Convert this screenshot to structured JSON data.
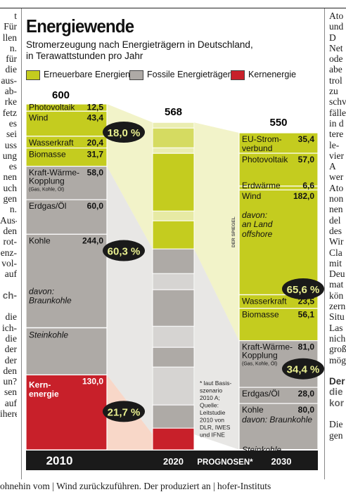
{
  "article": {
    "left_column": [
      "t",
      "Für",
      "llen",
      "n.",
      "für",
      "die",
      "aus-",
      "ab-",
      "rke",
      "fetz",
      "es",
      "sei",
      "uss",
      "ung",
      "es",
      "nen",
      "uch",
      "gen",
      "n.",
      "Aus-",
      "den",
      "rot-",
      "enz-",
      "vol-",
      "auf",
      "",
      "ch-",
      "",
      "die",
      "ich-",
      "die",
      "der",
      "der",
      "den",
      "un?",
      "sen",
      "auf",
      "ihere"
    ],
    "right_column": [
      "Ato",
      "und",
      "D",
      "Net",
      "ode",
      "abe",
      "trol",
      "zu",
      "schv",
      "fälle",
      "in d",
      "tere",
      "le-",
      "vier",
      "A",
      "wer",
      "Ato",
      "non",
      "nen",
      "del",
      "des",
      "Wir",
      "Cla",
      "mit",
      "Deu",
      "mat",
      "kön",
      "zern",
      "Situ",
      "Las",
      "nich",
      "groß",
      "mög",
      "",
      "Der",
      "die",
      "kor",
      "",
      "Die",
      "gen"
    ],
    "bottom_line": "ohnehin vom  |  Wind zurückzuführen. Der produziert an  |  hofer-Instituts"
  },
  "title": "Energiewende",
  "subtitle_lines": [
    "Stromerzeugung nach Energieträgern in Deutschland,",
    "in Terawattstunden pro Jahr"
  ],
  "legend": [
    {
      "label": "Erneuerbare Energien",
      "color": "#c4cc1f"
    },
    {
      "label": "Fossile Energieträger",
      "color": "#aeaaa6"
    },
    {
      "label": "Kernenergie",
      "color": "#c8202a"
    }
  ],
  "colors": {
    "renewable": "#c4cc1f",
    "fossil": "#aeaaa6",
    "nuclear": "#c8202a",
    "band_dark": "#1a1a1a",
    "renewable_light": "#e8ea9c",
    "fossil_light": "#d6d3d0",
    "nuclear_light": "#f2b79a"
  },
  "chart_data": {
    "type": "bar",
    "stacked": true,
    "unit": "TWh",
    "categories": [
      "2010",
      "2020",
      "2030"
    ],
    "band_label": "PROGNOSEN*",
    "totals": [
      600,
      568,
      550
    ],
    "bars": [
      {
        "year": "2010",
        "total": 600,
        "segments": [
          {
            "label": "Photovoltaik",
            "value": 12.5,
            "value_label": "12,5",
            "type": "renewable"
          },
          {
            "label": "Wind",
            "value": 43.4,
            "value_label": "43,4",
            "type": "renewable"
          },
          {
            "label": "Wasserkraft",
            "value": 20.4,
            "value_label": "20,4",
            "type": "renewable"
          },
          {
            "label": "Biomasse",
            "value": 31.7,
            "value_label": "31,7",
            "type": "renewable"
          },
          {
            "label": "Kraft-Wärme-Kopplung",
            "sublabel": "(Gas, Kohle, Öl)",
            "value": 58.0,
            "value_label": "58,0",
            "type": "fossil"
          },
          {
            "label": "Erdgas/Öl",
            "value": 60.0,
            "value_label": "60,0",
            "type": "fossil"
          },
          {
            "label": "Kohle",
            "value": 244.0,
            "value_label": "244,0",
            "type": "fossil",
            "note": "davon: Braunkohle",
            "note2": "Steinkohle"
          },
          {
            "label": "Kernenergie",
            "value": 130.0,
            "value_label": "130,0",
            "type": "nuclear"
          }
        ],
        "shares": [
          {
            "label": "18,0 %",
            "value": 18.0,
            "type": "renewable"
          },
          {
            "label": "60,3 %",
            "value": 60.3,
            "type": "fossil"
          },
          {
            "label": "21,7 %",
            "value": 21.7,
            "type": "nuclear"
          }
        ]
      },
      {
        "year": "2020",
        "total": 568,
        "segments": []
      },
      {
        "year": "2030",
        "total": 550,
        "segments": [
          {
            "label": "EU-Stromverbund",
            "value": 35.4,
            "value_label": "35,4",
            "type": "renewable"
          },
          {
            "label": "Photovoltaik",
            "value": 57.0,
            "value_label": "57,0",
            "type": "renewable"
          },
          {
            "label": "Erdwärme",
            "value": 6.6,
            "value_label": "6,6",
            "type": "renewable"
          },
          {
            "label": "Wind",
            "value": 182.0,
            "value_label": "182,0",
            "type": "renewable",
            "note": "davon: an Land",
            "note2": "offshore"
          },
          {
            "label": "Wasserkraft",
            "value": 23.5,
            "value_label": "23,5",
            "type": "renewable"
          },
          {
            "label": "Biomasse",
            "value": 56.1,
            "value_label": "56,1",
            "type": "renewable"
          },
          {
            "label": "Kraft-Wärme-Kopplung",
            "sublabel": "(Gas, Kohle, Öl)",
            "value": 81.0,
            "value_label": "81,0",
            "type": "fossil"
          },
          {
            "label": "Erdgas/Öl",
            "value": 28.0,
            "value_label": "28,0",
            "type": "fossil"
          },
          {
            "label": "Kohle",
            "value": 80.0,
            "value_label": "80,0",
            "type": "fossil",
            "note": "davon: Braunkohle",
            "note2": "Steinkohle"
          }
        ],
        "shares": [
          {
            "label": "65,6 %",
            "value": 65.6,
            "type": "renewable"
          },
          {
            "label": "34,4 %",
            "value": 34.4,
            "type": "fossil"
          }
        ]
      }
    ],
    "footnote": "* laut Basis- szenario 2010 A; Quelle: Leitstudie 2010 von DLR, IWES und IFNE",
    "credit": "DER SPIEGEL"
  }
}
